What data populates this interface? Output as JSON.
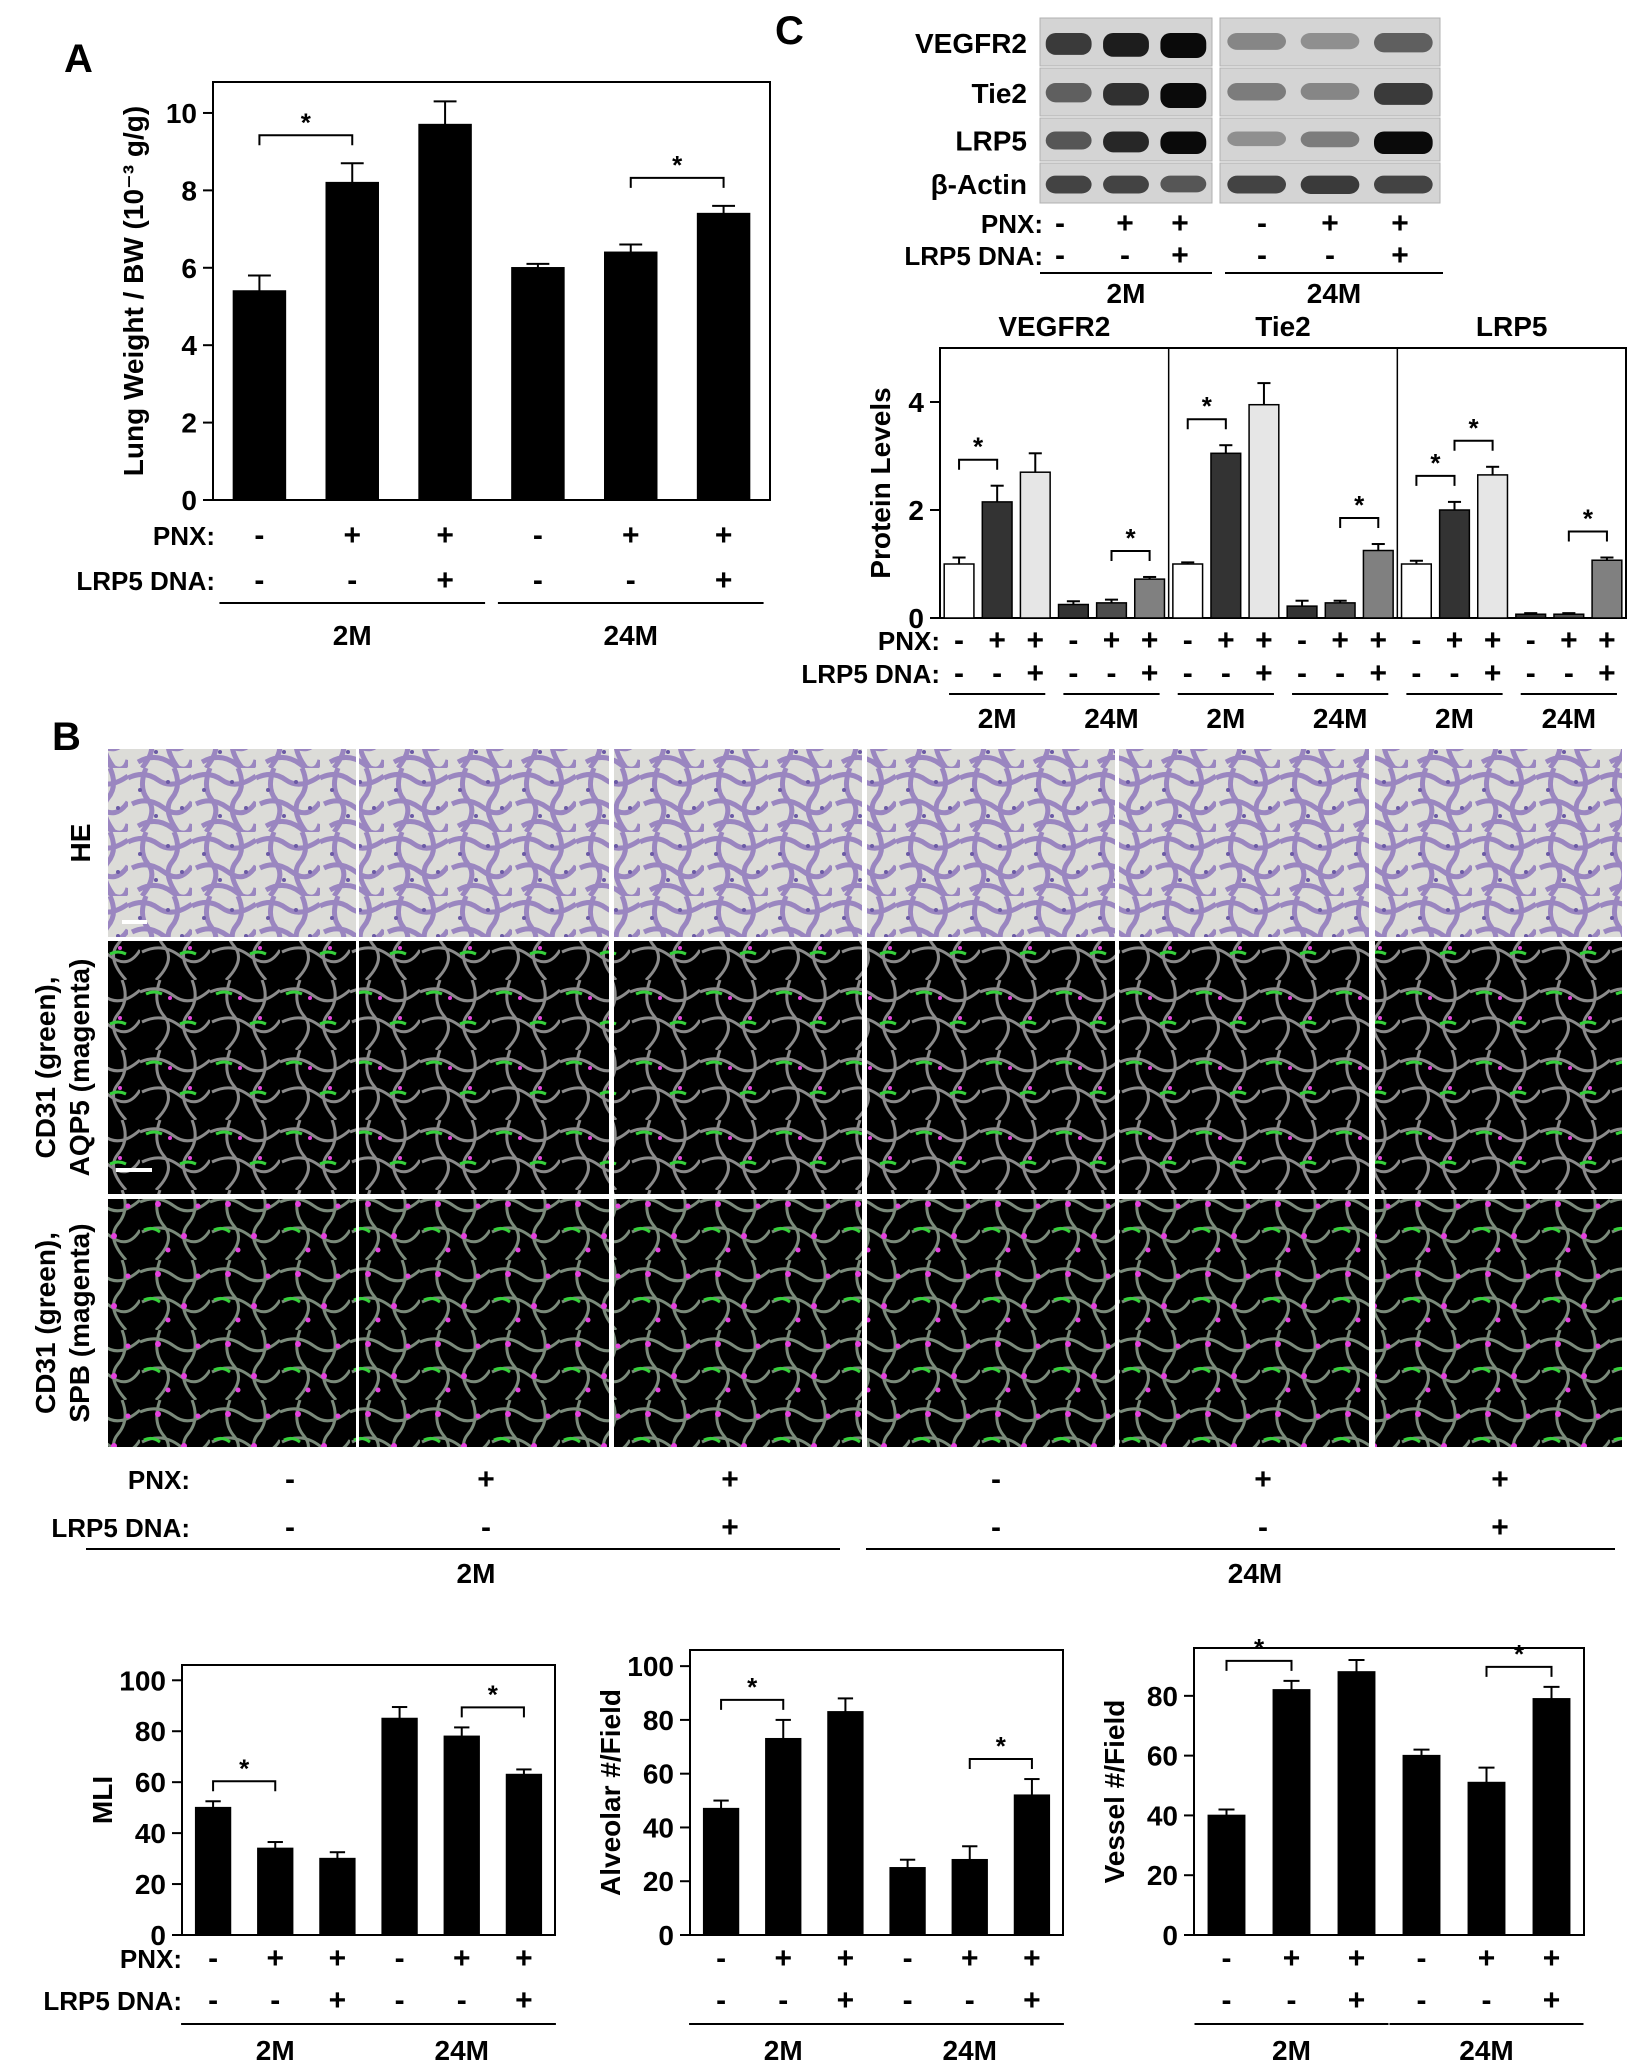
{
  "panels": {
    "A": "A",
    "B": "B",
    "C": "C"
  },
  "chart_data": [
    {
      "id": "A",
      "type": "bar",
      "ylabel": "Lung Weight / BW (10⁻³ g/g)",
      "ylim": [
        0,
        10.8
      ],
      "yticks": [
        0,
        2,
        4,
        6,
        8,
        10
      ],
      "series": [
        {
          "values": [
            5.4,
            8.2,
            9.7,
            6.0,
            6.4,
            7.4
          ],
          "errors": [
            0.4,
            0.5,
            0.6,
            0.1,
            0.2,
            0.2
          ],
          "color": "#000000"
        }
      ],
      "significance": [
        [
          0,
          1
        ],
        [
          4,
          5
        ]
      ],
      "row_labels": [
        "PNX:",
        "LRP5 DNA:"
      ],
      "pnx": [
        "-",
        "+",
        "+",
        "-",
        "+",
        "+"
      ],
      "lrp5": [
        "-",
        "-",
        "+",
        "-",
        "-",
        "+"
      ],
      "groups": [
        "2M",
        "24M"
      ]
    },
    {
      "id": "C-quant",
      "type": "bar",
      "ylabel": "Protein Levels",
      "ylim": [
        0,
        5
      ],
      "yticks": [
        0,
        2,
        4
      ],
      "facets": [
        "VEGFR2",
        "Tie2",
        "LRP5"
      ],
      "bar_colors": [
        "#ffffff",
        "#333333",
        "#e6e6e6",
        "#333333",
        "#4d4d4d",
        "#808080"
      ],
      "series": [
        {
          "name": "VEGFR2",
          "values": [
            1.0,
            2.15,
            2.7,
            0.25,
            0.28,
            0.72
          ],
          "errors": [
            0.12,
            0.3,
            0.35,
            0.06,
            0.06,
            0.04
          ]
        },
        {
          "name": "Tie2",
          "values": [
            1.0,
            3.05,
            3.95,
            0.22,
            0.28,
            1.25
          ],
          "errors": [
            0.03,
            0.15,
            0.4,
            0.1,
            0.04,
            0.12
          ]
        },
        {
          "name": "LRP5",
          "values": [
            1.0,
            2.0,
            2.65,
            0.07,
            0.07,
            1.07
          ],
          "errors": [
            0.06,
            0.15,
            0.15,
            0.02,
            0.02,
            0.05
          ]
        }
      ],
      "significance": [
        [
          [
            0,
            1
          ],
          [
            4,
            5
          ]
        ],
        [
          [
            0,
            1
          ],
          [
            4,
            5
          ]
        ],
        [
          [
            0,
            1
          ],
          [
            1,
            2
          ],
          [
            4,
            5
          ]
        ]
      ],
      "row_labels": [
        "PNX:",
        "LRP5 DNA:"
      ],
      "pnx": [
        "-",
        "+",
        "+",
        "-",
        "+",
        "+"
      ],
      "lrp5": [
        "-",
        "-",
        "+",
        "-",
        "-",
        "+"
      ],
      "groups": [
        "2M",
        "24M"
      ]
    },
    {
      "id": "MLI",
      "type": "bar",
      "ylabel": "MLI",
      "ylim": [
        0,
        106
      ],
      "yticks": [
        0,
        20,
        40,
        60,
        80,
        100
      ],
      "series": [
        {
          "values": [
            50,
            34,
            30,
            85,
            78,
            63
          ],
          "errors": [
            2.5,
            2.5,
            2.5,
            4.5,
            3.5,
            2
          ],
          "color": "#000000"
        }
      ],
      "significance": [
        [
          0,
          1
        ],
        [
          4,
          5
        ]
      ],
      "row_labels": [
        "PNX:",
        "LRP5 DNA:"
      ],
      "pnx": [
        "-",
        "+",
        "+",
        "-",
        "+",
        "+"
      ],
      "lrp5": [
        "-",
        "-",
        "+",
        "-",
        "-",
        "+"
      ],
      "groups": [
        "2M",
        "24M"
      ]
    },
    {
      "id": "Alveolar",
      "type": "bar",
      "ylabel": "Alveolar #/Field",
      "ylim": [
        0,
        106
      ],
      "yticks": [
        0,
        20,
        40,
        60,
        80,
        100
      ],
      "series": [
        {
          "values": [
            47,
            73,
            83,
            25,
            28,
            52
          ],
          "errors": [
            3,
            7,
            5,
            3,
            5,
            6
          ],
          "color": "#000000"
        }
      ],
      "significance": [
        [
          0,
          1
        ],
        [
          4,
          5
        ]
      ],
      "row_labels": [],
      "pnx": [
        "-",
        "+",
        "+",
        "-",
        "+",
        "+"
      ],
      "lrp5": [
        "-",
        "-",
        "+",
        "-",
        "-",
        "+"
      ],
      "groups": [
        "2M",
        "24M"
      ]
    },
    {
      "id": "Vessel",
      "type": "bar",
      "ylabel": "Vessel #/Field",
      "ylim": [
        0,
        96
      ],
      "yticks": [
        0,
        20,
        40,
        60,
        80
      ],
      "series": [
        {
          "values": [
            40,
            82,
            88,
            60,
            51,
            79
          ],
          "errors": [
            2,
            3,
            4,
            2,
            5,
            4
          ],
          "color": "#000000"
        }
      ],
      "significance": [
        [
          0,
          1
        ],
        [
          4,
          5
        ]
      ],
      "row_labels": [],
      "pnx": [
        "-",
        "+",
        "+",
        "-",
        "+",
        "+"
      ],
      "lrp5": [
        "-",
        "-",
        "+",
        "-",
        "-",
        "+"
      ],
      "groups": [
        "2M",
        "24M"
      ]
    }
  ],
  "western_blot": {
    "labels": [
      "VEGFR2",
      "Tie2",
      "LRP5",
      "β-Actin"
    ],
    "row_labels": [
      "PNX:",
      "LRP5 DNA:"
    ],
    "pnx": [
      "-",
      "+",
      "+",
      "-",
      "+",
      "+"
    ],
    "lrp5": [
      "-",
      "-",
      "+",
      "-",
      "-",
      "+"
    ],
    "groups": [
      "2M",
      "24M"
    ]
  },
  "micrographs": {
    "row_labels": [
      [
        "HE"
      ],
      [
        "CD31 (green),",
        "AQP5 (magenta)"
      ],
      [
        "CD31 (green),",
        "SPB (magenta)"
      ]
    ],
    "conditions": {
      "row_labels": [
        "PNX:",
        "LRP5 DNA:"
      ],
      "pnx": [
        "-",
        "+",
        "+",
        "-",
        "+",
        "+"
      ],
      "lrp5": [
        "-",
        "-",
        "+",
        "-",
        "-",
        "+"
      ],
      "groups": [
        "2M",
        "24M"
      ]
    }
  },
  "colors": {
    "he_bg": "#dcdcd8",
    "he_tissue": "#9a86c0",
    "he_tissue_dark": "#6b5aa5",
    "fluor_bg": "#000000",
    "green": "#35d13a",
    "magenta": "#e640e0",
    "gray_tissue": "#8a8a8a"
  }
}
